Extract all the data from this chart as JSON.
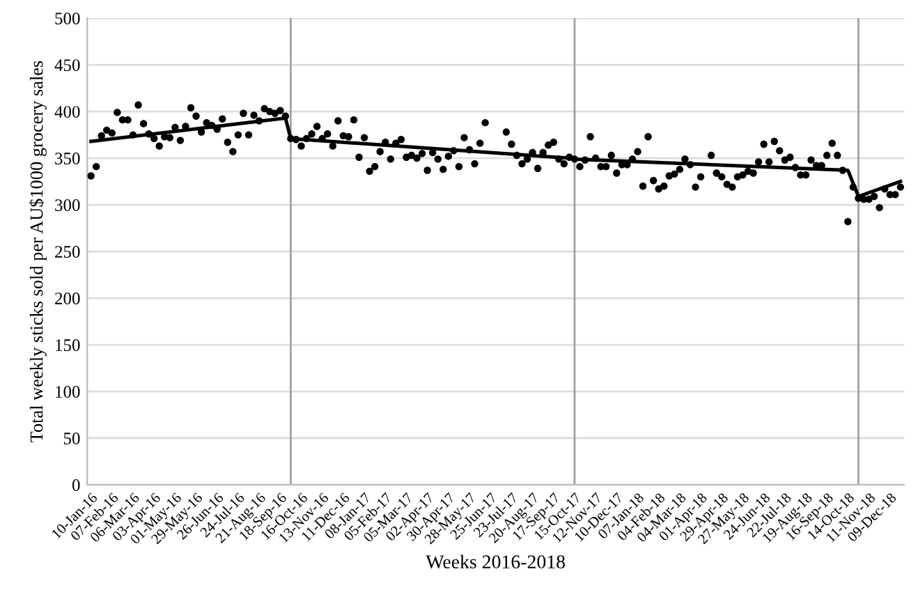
{
  "chart_data": {
    "type": "scatter",
    "xlabel": "Weeks 2016-2018",
    "ylabel": "Total weekly sticks sold per AU$1000 grocery sales",
    "ylim": [
      0,
      500
    ],
    "yticks": [
      0,
      50,
      100,
      150,
      200,
      250,
      300,
      350,
      400,
      450,
      500
    ],
    "xlim": [
      "2016-01-05",
      "2018-12-28"
    ],
    "xticks": [
      {
        "value": "2016-01-10",
        "label": "10-Jan-16"
      },
      {
        "value": "2016-02-07",
        "label": "07-Feb-16"
      },
      {
        "value": "2016-03-06",
        "label": "06-Mar-16"
      },
      {
        "value": "2016-04-03",
        "label": "03-Apr-16"
      },
      {
        "value": "2016-05-01",
        "label": "01-May-16"
      },
      {
        "value": "2016-05-29",
        "label": "29-May-16"
      },
      {
        "value": "2016-06-26",
        "label": "26-Jun-16"
      },
      {
        "value": "2016-07-24",
        "label": "24-Jul-16"
      },
      {
        "value": "2016-08-21",
        "label": "21-Aug-16"
      },
      {
        "value": "2016-09-18",
        "label": "18-Sep-16"
      },
      {
        "value": "2016-10-16",
        "label": "16-Oct-16"
      },
      {
        "value": "2016-11-13",
        "label": "13-Nov-16"
      },
      {
        "value": "2016-12-11",
        "label": "11-Dec-16"
      },
      {
        "value": "2017-01-08",
        "label": "08-Jan-17"
      },
      {
        "value": "2017-02-05",
        "label": "05-Feb-17"
      },
      {
        "value": "2017-03-05",
        "label": "05-Mar-17"
      },
      {
        "value": "2017-04-02",
        "label": "02-Apr-17"
      },
      {
        "value": "2017-04-30",
        "label": "30-Apr-17"
      },
      {
        "value": "2017-05-28",
        "label": "28-May-17"
      },
      {
        "value": "2017-06-25",
        "label": "25-Jun-17"
      },
      {
        "value": "2017-07-23",
        "label": "23-Jul-17"
      },
      {
        "value": "2017-08-20",
        "label": "20-Aug-17"
      },
      {
        "value": "2017-09-17",
        "label": "17-Sep-17"
      },
      {
        "value": "2017-10-15",
        "label": "15-Oct-17"
      },
      {
        "value": "2017-11-12",
        "label": "12-Nov-17"
      },
      {
        "value": "2017-12-10",
        "label": "10-Dec-17"
      },
      {
        "value": "2018-01-07",
        "label": "07-Jan-18"
      },
      {
        "value": "2018-02-04",
        "label": "04-Feb-18"
      },
      {
        "value": "2018-03-04",
        "label": "04-Mar-18"
      },
      {
        "value": "2018-04-01",
        "label": "01-Apr-18"
      },
      {
        "value": "2018-04-29",
        "label": "29-Apr-18"
      },
      {
        "value": "2018-05-27",
        "label": "27-May-18"
      },
      {
        "value": "2018-06-24",
        "label": "24-Jun-18"
      },
      {
        "value": "2018-07-22",
        "label": "22-Jul-18"
      },
      {
        "value": "2018-08-19",
        "label": "19-Aug-18"
      },
      {
        "value": "2018-09-16",
        "label": "16-Sep-18"
      },
      {
        "value": "2018-10-14",
        "label": "14-Oct-18"
      },
      {
        "value": "2018-11-11",
        "label": "11-Nov-18"
      },
      {
        "value": "2018-12-09",
        "label": "09-Dec-18"
      }
    ],
    "grid": "y",
    "legend": false,
    "ref_lines": [
      {
        "axis": "x",
        "value": "2016-10-02",
        "color": "#a0a0a0"
      },
      {
        "axis": "x",
        "value": "2017-10-15",
        "color": "#a0a0a0"
      },
      {
        "axis": "x",
        "value": "2018-10-28",
        "color": "#a0a0a0"
      }
    ],
    "series": [
      {
        "color": "#000000",
        "marker": "circle",
        "x": [
          "2016-01-10",
          "2016-01-17",
          "2016-01-24",
          "2016-01-31",
          "2016-02-07",
          "2016-02-14",
          "2016-02-21",
          "2016-02-28",
          "2016-03-06",
          "2016-03-13",
          "2016-03-20",
          "2016-03-27",
          "2016-04-03",
          "2016-04-10",
          "2016-04-17",
          "2016-04-24",
          "2016-05-01",
          "2016-05-08",
          "2016-05-15",
          "2016-05-22",
          "2016-05-29",
          "2016-06-05",
          "2016-06-12",
          "2016-06-19",
          "2016-06-26",
          "2016-07-03",
          "2016-07-10",
          "2016-07-17",
          "2016-07-24",
          "2016-07-31",
          "2016-08-07",
          "2016-08-14",
          "2016-08-21",
          "2016-08-28",
          "2016-09-04",
          "2016-09-11",
          "2016-09-18",
          "2016-09-25",
          "2016-10-02",
          "2016-10-09",
          "2016-10-16",
          "2016-10-23",
          "2016-10-30",
          "2016-11-06",
          "2016-11-13",
          "2016-11-20",
          "2016-11-27",
          "2016-12-04",
          "2016-12-11",
          "2016-12-18",
          "2016-12-25",
          "2017-01-01",
          "2017-01-08",
          "2017-01-15",
          "2017-01-22",
          "2017-01-29",
          "2017-02-05",
          "2017-02-12",
          "2017-02-19",
          "2017-02-26",
          "2017-03-05",
          "2017-03-12",
          "2017-03-19",
          "2017-03-26",
          "2017-04-02",
          "2017-04-09",
          "2017-04-16",
          "2017-04-23",
          "2017-04-30",
          "2017-05-07",
          "2017-05-14",
          "2017-05-21",
          "2017-05-28",
          "2017-06-04",
          "2017-06-11",
          "2017-06-18",
          "2017-06-25",
          "2017-07-02",
          "2017-07-09",
          "2017-07-16",
          "2017-07-23",
          "2017-07-30",
          "2017-08-06",
          "2017-08-13",
          "2017-08-20",
          "2017-08-27",
          "2017-09-03",
          "2017-09-10",
          "2017-09-17",
          "2017-09-24",
          "2017-10-01",
          "2017-10-08",
          "2017-10-15",
          "2017-10-22",
          "2017-10-29",
          "2017-11-05",
          "2017-11-12",
          "2017-11-19",
          "2017-11-26",
          "2017-12-03",
          "2017-12-10",
          "2017-12-17",
          "2017-12-24",
          "2017-12-31",
          "2018-01-07",
          "2018-01-14",
          "2018-01-21",
          "2018-01-28",
          "2018-02-04",
          "2018-02-11",
          "2018-02-18",
          "2018-02-25",
          "2018-03-04",
          "2018-03-11",
          "2018-03-18",
          "2018-03-25",
          "2018-04-01",
          "2018-04-08",
          "2018-04-15",
          "2018-04-22",
          "2018-04-29",
          "2018-05-06",
          "2018-05-13",
          "2018-05-20",
          "2018-05-27",
          "2018-06-03",
          "2018-06-10",
          "2018-06-17",
          "2018-06-24",
          "2018-07-01",
          "2018-07-08",
          "2018-07-15",
          "2018-07-22",
          "2018-07-29",
          "2018-08-05",
          "2018-08-12",
          "2018-08-19",
          "2018-08-26",
          "2018-09-02",
          "2018-09-09",
          "2018-09-16",
          "2018-09-23",
          "2018-09-30",
          "2018-10-07",
          "2018-10-14",
          "2018-10-21",
          "2018-10-28",
          "2018-11-04",
          "2018-11-11",
          "2018-11-18",
          "2018-11-25",
          "2018-12-02",
          "2018-12-09",
          "2018-12-16",
          "2018-12-23"
        ],
        "values": [
          331,
          341,
          374,
          380,
          377,
          399,
          391,
          391,
          375,
          407,
          387,
          376,
          371,
          363,
          373,
          372,
          383,
          369,
          384,
          404,
          395,
          378,
          388,
          385,
          381,
          392,
          367,
          357,
          375,
          398,
          375,
          396,
          390,
          403,
          400,
          398,
          401,
          395,
          371,
          370,
          363,
          371,
          376,
          384,
          371,
          376,
          363,
          390,
          374,
          373,
          391,
          351,
          372,
          336,
          341,
          357,
          367,
          349,
          366,
          370,
          351,
          353,
          350,
          355,
          337,
          356,
          349,
          338,
          352,
          358,
          341,
          372,
          359,
          344,
          366,
          388,
          null,
          null,
          null,
          378,
          365,
          353,
          344,
          349,
          356,
          339,
          356,
          364,
          367,
          349,
          344,
          351,
          349,
          341,
          348,
          373,
          350,
          341,
          341,
          353,
          334,
          343,
          343,
          349,
          357,
          320,
          373,
          326,
          317,
          320,
          331,
          333,
          338,
          349,
          343,
          319,
          330,
          null,
          353,
          334,
          330,
          322,
          319,
          330,
          332,
          336,
          334,
          346,
          365,
          346,
          368,
          358,
          348,
          351,
          340,
          332,
          332,
          348,
          342,
          342,
          353,
          366,
          353,
          337,
          282,
          319,
          307,
          306,
          306,
          309,
          297,
          317,
          311,
          311,
          319
        ]
      },
      {
        "type": "line",
        "color": "#000000",
        "line_style": "solid",
        "marker": "none",
        "x": [
          "2016-01-10",
          "2016-09-25",
          "2016-10-02",
          "2017-10-08",
          "2017-10-15",
          "2018-10-14",
          "2018-10-28",
          "2018-12-23"
        ],
        "values": [
          368,
          393,
          371,
          350,
          349,
          337,
          309,
          325
        ]
      }
    ]
  }
}
